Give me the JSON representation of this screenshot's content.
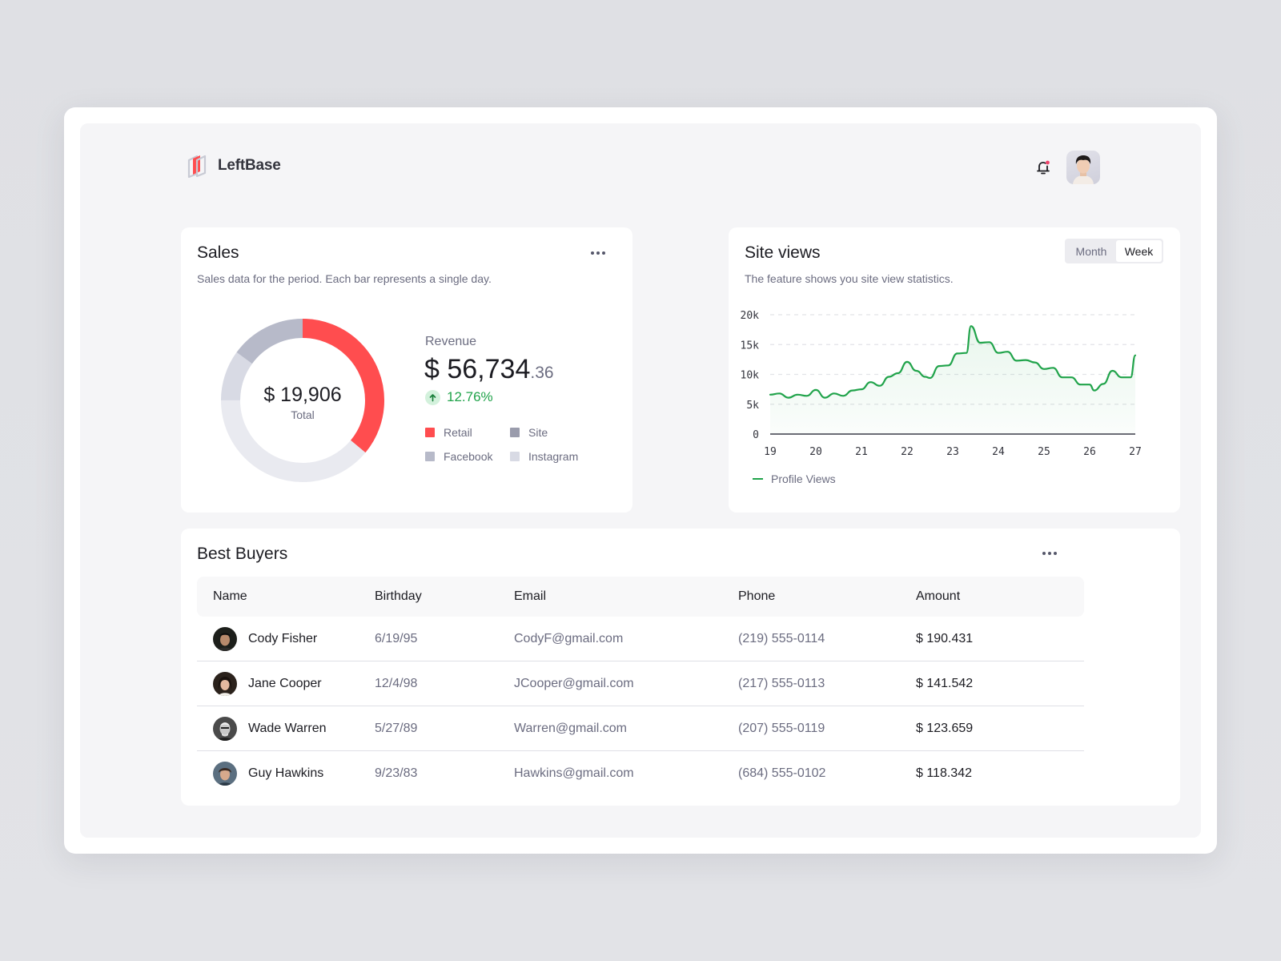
{
  "app": {
    "name": "LeftBase",
    "notification_dot_color": "#f0426a"
  },
  "colors": {
    "accent_red": "#ff4d4f",
    "accent_green": "#20a34a",
    "site": "#9a9cac",
    "facebook": "#b7bac9",
    "instagram": "#d8dae4",
    "track": "#e9eaf0"
  },
  "sales": {
    "title": "Sales",
    "subtitle": "Sales data for the period. Each bar represents a single day.",
    "more_label": "More options",
    "total_value": "$ 19,906",
    "total_label": "Total",
    "revenue_label": "Revenue",
    "revenue_main": "$ 56,734",
    "revenue_cents": ".36",
    "revenue_change": "12.76%",
    "legend": [
      {
        "label": "Retail",
        "color": "#ff4d4f"
      },
      {
        "label": "Site",
        "color": "#9a9cac"
      },
      {
        "label": "Facebook",
        "color": "#b7bac9"
      },
      {
        "label": "Instagram",
        "color": "#d8dae4"
      }
    ]
  },
  "site_views": {
    "title": "Site views",
    "subtitle": "The feature shows you site view statistics.",
    "toggle": {
      "month": "Month",
      "week": "Week",
      "selected": "Week"
    },
    "legend_label": "Profile Views"
  },
  "chart_data": [
    {
      "type": "pie",
      "title": "Sales",
      "subtitle": "Total $ 19,906",
      "categories": [
        "Retail",
        "Instagram",
        "Site",
        "Facebook"
      ],
      "values": [
        36,
        42,
        10,
        12
      ],
      "note": "Donut segment shares estimated from arc lengths (percent)"
    },
    {
      "type": "area",
      "title": "Site views",
      "xlabel": "",
      "ylabel": "",
      "x_ticks": [
        "19",
        "20",
        "21",
        "22",
        "23",
        "24",
        "25",
        "26",
        "27"
      ],
      "y_ticks": [
        "0",
        "5k",
        "10k",
        "15k",
        "20k"
      ],
      "ylim": [
        0,
        20000
      ],
      "grid": true,
      "legend_position": "bottom-left",
      "series": [
        {
          "name": "Profile Views",
          "color": "#20a34a",
          "x": [
            19.0,
            19.2,
            19.4,
            19.6,
            19.8,
            20.0,
            20.2,
            20.4,
            20.6,
            20.8,
            21.0,
            21.2,
            21.4,
            21.6,
            21.8,
            22.0,
            22.2,
            22.4,
            22.5,
            22.7,
            22.9,
            23.1,
            23.3,
            23.4,
            23.6,
            23.8,
            24.0,
            24.2,
            24.4,
            24.6,
            24.8,
            25.0,
            25.2,
            25.4,
            25.6,
            25.8,
            26.0,
            26.1,
            26.3,
            26.5,
            26.7,
            26.9,
            27.0
          ],
          "values": [
            6600,
            6800,
            6100,
            6600,
            6400,
            7400,
            6100,
            6800,
            6400,
            7300,
            7500,
            8700,
            8100,
            9600,
            10200,
            12100,
            10600,
            9600,
            9400,
            11400,
            11500,
            13500,
            13600,
            18100,
            15300,
            15400,
            13600,
            13800,
            12300,
            12400,
            12000,
            10900,
            11100,
            9500,
            9500,
            8300,
            8300,
            7300,
            8400,
            10600,
            9500,
            9500,
            13200
          ]
        }
      ]
    }
  ],
  "buyers": {
    "title": "Best Buyers",
    "columns": [
      "Name",
      "Birthday",
      "Email",
      "Phone",
      "Amount"
    ],
    "rows": [
      {
        "name": "Cody Fisher",
        "birthday": "6/19/95",
        "email": "CodyF@gmail.com",
        "phone": "(219) 555-0114",
        "amount": "$ 190.431"
      },
      {
        "name": "Jane Cooper",
        "birthday": "12/4/98",
        "email": "JCooper@gmail.com",
        "phone": "(217) 555-0113",
        "amount": "$ 141.542"
      },
      {
        "name": "Wade Warren",
        "birthday": "5/27/89",
        "email": "Warren@gmail.com",
        "phone": "(207) 555-0119",
        "amount": "$ 123.659"
      },
      {
        "name": "Guy Hawkins",
        "birthday": "9/23/83",
        "email": "Hawkins@gmail.com",
        "phone": "(684) 555-0102",
        "amount": "$ 118.342"
      }
    ]
  }
}
